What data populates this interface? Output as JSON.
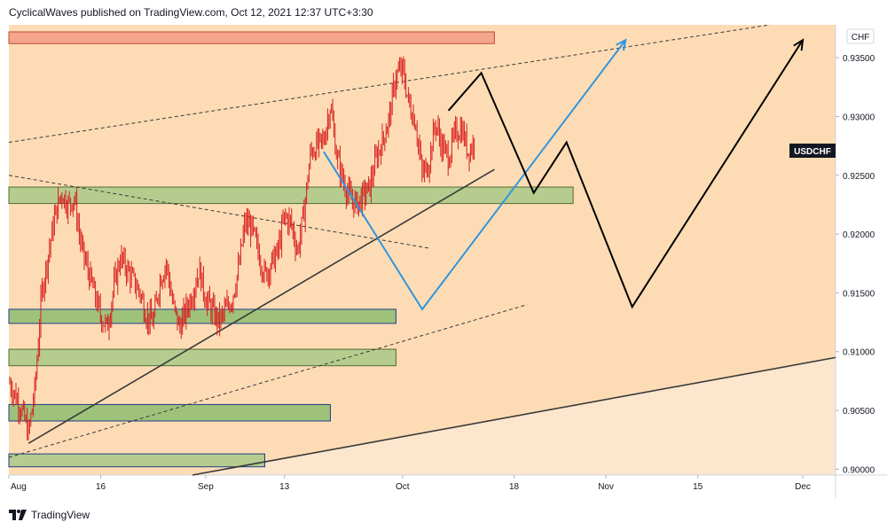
{
  "header": {
    "publisher_line": "CyclicalWaves published on TradingView.com, Oct 12, 2021 12:37 UTC+3:30"
  },
  "footer": {
    "brand_name": "TradingView",
    "logo_icon": "tradingview-logo-icon"
  },
  "chart_data": {
    "type": "candlestick",
    "symbol_label": "USDCHF",
    "currency_label": "CHF",
    "y_axis": {
      "range": [
        0.8995,
        0.9378
      ],
      "ticks": [
        "0.93500",
        "0.93000",
        "0.92500",
        "0.92000",
        "0.91500",
        "0.91000",
        "0.90500",
        "0.90000"
      ]
    },
    "x_axis": {
      "start": "2021-08-02",
      "end": "2021-12-06",
      "ticks": [
        {
          "date": "2021-08-02",
          "label": "Aug"
        },
        {
          "date": "2021-08-16",
          "label": "16"
        },
        {
          "date": "2021-09-01",
          "label": "Sep"
        },
        {
          "date": "2021-09-13",
          "label": "13"
        },
        {
          "date": "2021-10-01",
          "label": "Oct"
        },
        {
          "date": "2021-10-18",
          "label": "18"
        },
        {
          "date": "2021-11-01",
          "label": "Nov"
        },
        {
          "date": "2021-11-15",
          "label": "15"
        },
        {
          "date": "2021-12-01",
          "label": "Dec"
        }
      ]
    },
    "last_price": 0.9278,
    "price_path": [
      [
        "2021-08-02",
        0.9075
      ],
      [
        "2021-08-04",
        0.905
      ],
      [
        "2021-08-05",
        0.903
      ],
      [
        "2021-08-06",
        0.907
      ],
      [
        "2021-08-07",
        0.915
      ],
      [
        "2021-08-09",
        0.9215
      ],
      [
        "2021-08-10",
        0.9235
      ],
      [
        "2021-08-11",
        0.9225
      ],
      [
        "2021-08-12",
        0.923
      ],
      [
        "2021-08-13",
        0.919
      ],
      [
        "2021-08-15",
        0.915
      ],
      [
        "2021-08-16",
        0.913
      ],
      [
        "2021-08-17",
        0.912
      ],
      [
        "2021-08-18",
        0.9155
      ],
      [
        "2021-08-19",
        0.918
      ],
      [
        "2021-08-20",
        0.917
      ],
      [
        "2021-08-22",
        0.915
      ],
      [
        "2021-08-23",
        0.913
      ],
      [
        "2021-08-24",
        0.9125
      ],
      [
        "2021-08-25",
        0.916
      ],
      [
        "2021-08-26",
        0.9175
      ],
      [
        "2021-08-27",
        0.914
      ],
      [
        "2021-08-28",
        0.912
      ],
      [
        "2021-08-30",
        0.915
      ],
      [
        "2021-08-31",
        0.917
      ],
      [
        "2021-09-01",
        0.9145
      ],
      [
        "2021-09-02",
        0.9135
      ],
      [
        "2021-09-03",
        0.9125
      ],
      [
        "2021-09-05",
        0.9145
      ],
      [
        "2021-09-06",
        0.917
      ],
      [
        "2021-09-07",
        0.921
      ],
      [
        "2021-09-08",
        0.9205
      ],
      [
        "2021-09-09",
        0.9185
      ],
      [
        "2021-09-10",
        0.9165
      ],
      [
        "2021-09-12",
        0.9185
      ],
      [
        "2021-09-13",
        0.9215
      ],
      [
        "2021-09-14",
        0.921
      ],
      [
        "2021-09-15",
        0.9185
      ],
      [
        "2021-09-16",
        0.922
      ],
      [
        "2021-09-17",
        0.927
      ],
      [
        "2021-09-19",
        0.928
      ],
      [
        "2021-09-20",
        0.931
      ],
      [
        "2021-09-21",
        0.9265
      ],
      [
        "2021-09-22",
        0.9245
      ],
      [
        "2021-09-23",
        0.923
      ],
      [
        "2021-09-24",
        0.9225
      ],
      [
        "2021-09-26",
        0.924
      ],
      [
        "2021-09-27",
        0.9265
      ],
      [
        "2021-09-28",
        0.928
      ],
      [
        "2021-09-29",
        0.93
      ],
      [
        "2021-09-30",
        0.9335
      ],
      [
        "2021-10-01",
        0.934
      ],
      [
        "2021-10-02",
        0.931
      ],
      [
        "2021-10-03",
        0.9295
      ],
      [
        "2021-10-04",
        0.925
      ],
      [
        "2021-10-05",
        0.926
      ],
      [
        "2021-10-06",
        0.9295
      ],
      [
        "2021-10-07",
        0.9275
      ],
      [
        "2021-10-08",
        0.9265
      ],
      [
        "2021-10-09",
        0.9285
      ],
      [
        "2021-10-10",
        0.929
      ],
      [
        "2021-10-11",
        0.927
      ],
      [
        "2021-10-12",
        0.9278
      ]
    ],
    "support_zones": [
      {
        "from": "2021-08-02",
        "to": "2021-10-27",
        "low": 0.9226,
        "high": 0.924,
        "fill": "#b5cc8e",
        "border": "#536b36"
      },
      {
        "from": "2021-08-02",
        "to": "2021-09-30",
        "low": 0.9124,
        "high": 0.9136,
        "fill": "#9fc27a",
        "border": "#1f3c8a"
      },
      {
        "from": "2021-08-02",
        "to": "2021-09-30",
        "low": 0.9088,
        "high": 0.9102,
        "fill": "#b5cc8e",
        "border": "#536b36"
      },
      {
        "from": "2021-08-02",
        "to": "2021-09-20",
        "low": 0.9041,
        "high": 0.9055,
        "fill": "#9fc27a",
        "border": "#1f3c8a"
      },
      {
        "from": "2021-08-02",
        "to": "2021-09-10",
        "low": 0.9002,
        "high": 0.9013,
        "fill": "#b5cc8e",
        "border": "#1f3c8a"
      }
    ],
    "resistance_zone": {
      "from": "2021-08-02",
      "to": "2021-10-15",
      "low": 0.9362,
      "high": 0.9372,
      "fill": "#f4a58a",
      "border": "#c04a3a"
    },
    "projection_black": [
      [
        "2021-10-08",
        0.9305
      ],
      [
        "2021-10-13",
        0.9337
      ],
      [
        "2021-10-21",
        0.9235
      ],
      [
        "2021-10-26",
        0.9278
      ],
      [
        "2021-11-05",
        0.9138
      ],
      [
        "2021-12-01",
        0.9365
      ]
    ],
    "projection_blue": [
      [
        "2021-09-19",
        0.927
      ],
      [
        "2021-10-04",
        0.9136
      ],
      [
        "2021-11-04",
        0.9365
      ]
    ],
    "trend_lines": [
      {
        "style": "solid",
        "color": "#3a3a3a",
        "points": [
          [
            "2021-08-05",
            0.9022
          ],
          [
            "2021-10-15",
            0.9255
          ]
        ]
      },
      {
        "style": "solid",
        "color": "#3a3a3a",
        "points": [
          [
            "2021-08-30",
            0.8995
          ],
          [
            "2021-12-06",
            0.9095
          ]
        ]
      },
      {
        "style": "dashed",
        "color": "#3a3a3a",
        "points": [
          [
            "2021-08-02",
            0.9278
          ],
          [
            "2021-11-26",
            0.9378
          ]
        ]
      },
      {
        "style": "dashed",
        "color": "#3a3a3a",
        "points": [
          [
            "2021-08-02",
            0.925
          ],
          [
            "2021-10-05",
            0.9188
          ]
        ]
      },
      {
        "style": "dashed",
        "color": "#3a3a3a",
        "points": [
          [
            "2021-08-02",
            0.901
          ],
          [
            "2021-10-20",
            0.914
          ]
        ]
      }
    ],
    "colors": {
      "background": "#fddcb5",
      "lower_band": "#fde6ce",
      "candle": "#d81e1e",
      "blue_path": "#2f95de",
      "label_bg": "#131722"
    }
  }
}
